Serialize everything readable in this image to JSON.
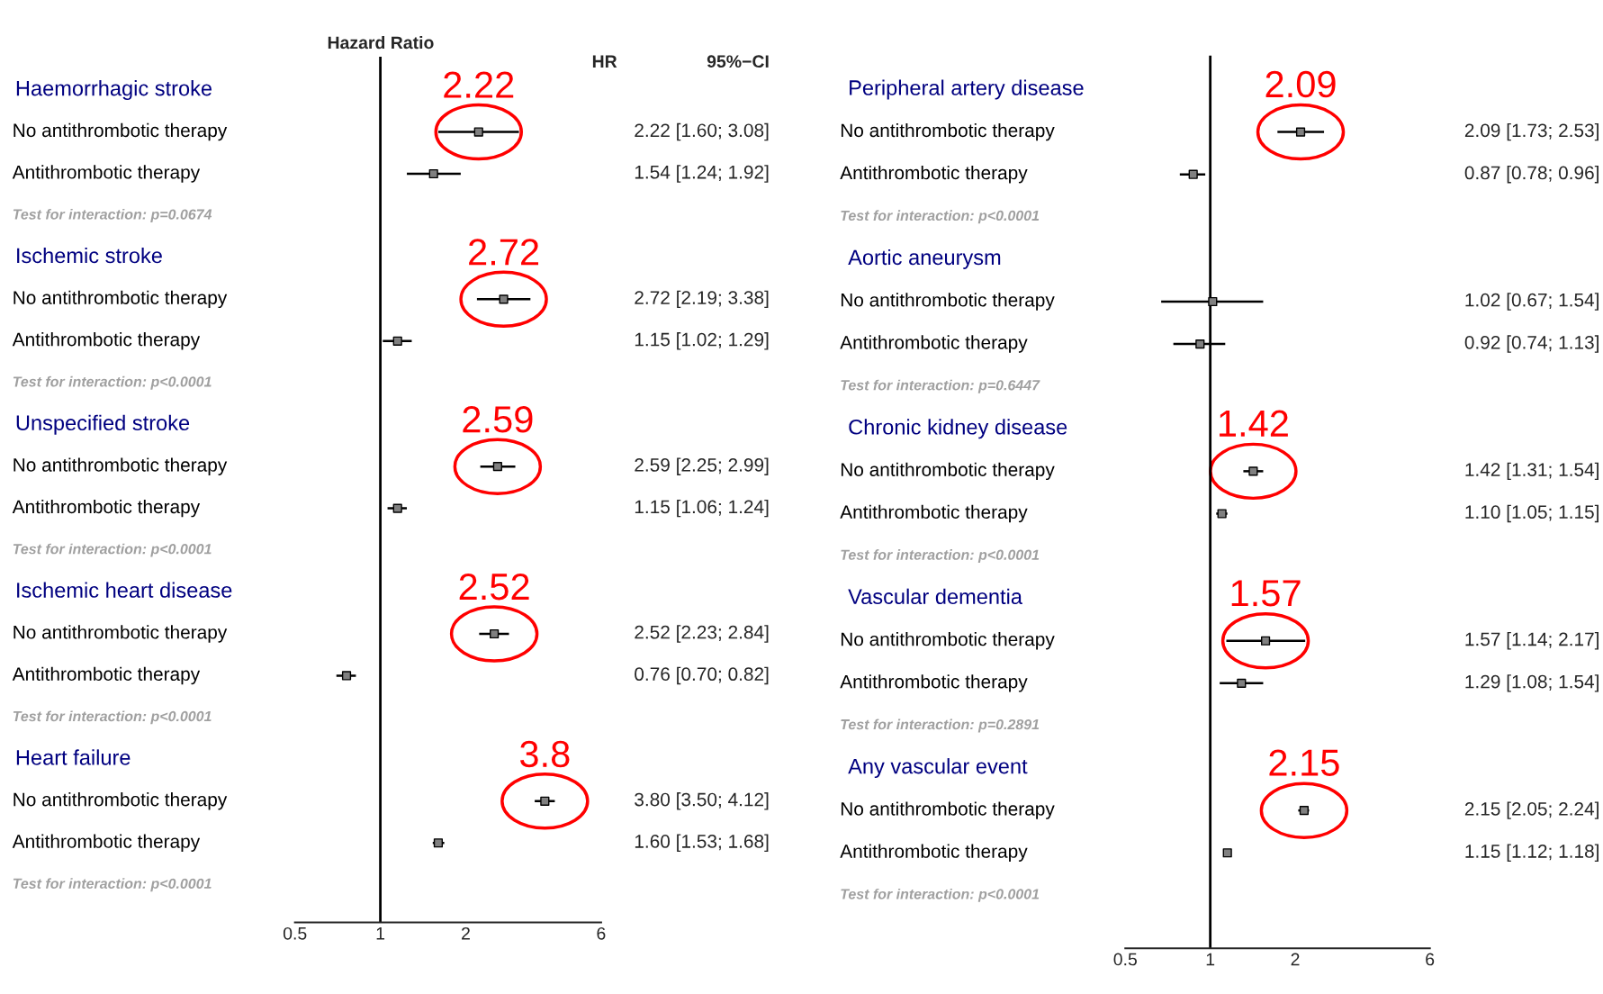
{
  "chart_data": [
    {
      "type": "scatter",
      "orientation": "horizontal",
      "title": "Hazard Ratio",
      "log": "x",
      "xlim": [
        0.5,
        6
      ],
      "xticks": [
        0.5,
        1,
        2,
        6
      ],
      "tick_labels": "x",
      "marker": "square",
      "categories": [
        "Haemorrhagic stroke",
        "No antithrombotic therapy",
        "Antithrombotic therapy",
        "Test for interaction: p=0.0674",
        "Ischemic stroke",
        "No antithrombotic therapy",
        "Antithrombotic therapy",
        "Test for interaction: p<0.0001",
        "Unspecified stroke",
        "No antithrombotic therapy",
        "Antithrombotic therapy",
        "Test for interaction: p<0.0001",
        "Ischemic heart disease",
        "No antithrombotic therapy",
        "Antithrombotic therapy",
        "Test for interaction: p<0.0001",
        "Heart failure",
        "No antithrombotic therapy",
        "Antithrombotic therapy",
        "Test for interaction: p<0.0001"
      ],
      "series": [
        {
          "color": "#000000",
          "values": [
            null,
            2.22,
            1.54,
            null,
            null,
            2.72,
            1.15,
            null,
            null,
            2.59,
            1.15,
            null,
            null,
            2.52,
            0.76,
            null,
            null,
            3.8,
            1.6,
            null
          ],
          "errors": [
            null,
            [
              1.6,
              3.08
            ],
            [
              1.24,
              1.92
            ],
            null,
            null,
            [
              2.19,
              3.38
            ],
            [
              1.02,
              1.29
            ],
            null,
            null,
            [
              2.25,
              2.99
            ],
            [
              1.06,
              1.24
            ],
            null,
            null,
            [
              2.23,
              2.84
            ],
            [
              0.7,
              0.82
            ],
            null,
            null,
            [
              3.5,
              4.12
            ],
            [
              1.53,
              1.68
            ],
            null
          ],
          "value_labels": [
            null,
            "2.22 [1.60; 3.08]",
            "1.54 [1.24; 1.92]",
            null,
            null,
            "2.72 [2.19; 3.38]",
            "1.15 [1.02; 1.29]",
            null,
            null,
            "2.59 [2.25; 2.99]",
            "1.15 [1.06; 1.24]",
            null,
            null,
            "2.52 [2.23; 2.84]",
            "0.76 [0.70; 0.82]",
            null,
            null,
            "3.80 [3.50; 4.12]",
            "1.60 [1.53; 1.68]",
            null
          ]
        }
      ],
      "ref_lines": [
        {
          "axis": "x",
          "value": 1,
          "color": "#000000"
        }
      ],
      "annotations": [
        "HR",
        "95%−CI",
        "2.22",
        "2.72",
        "2.59",
        "2.52",
        "3.8"
      ]
    },
    {
      "type": "scatter",
      "orientation": "horizontal",
      "log": "x",
      "xlim": [
        0.5,
        6
      ],
      "xticks": [
        0.5,
        1,
        2,
        6
      ],
      "tick_labels": "x",
      "marker": "square",
      "categories": [
        "Peripheral artery disease",
        "No antithrombotic therapy",
        "Antithrombotic therapy",
        "Test for interaction: p<0.0001",
        "Aortic aneurysm",
        "No antithrombotic therapy",
        "Antithrombotic therapy",
        "Test for interaction: p=0.6447",
        "Chronic kidney disease",
        "No antithrombotic therapy",
        "Antithrombotic therapy",
        "Test for interaction: p<0.0001",
        "Vascular dementia",
        "No antithrombotic therapy",
        "Antithrombotic therapy",
        "Test for interaction: p=0.2891",
        "Any vascular event",
        "No antithrombotic therapy",
        "Antithrombotic therapy",
        "Test for interaction: p<0.0001"
      ],
      "series": [
        {
          "color": "#000000",
          "values": [
            null,
            2.09,
            0.87,
            null,
            null,
            1.02,
            0.92,
            null,
            null,
            1.42,
            1.1,
            null,
            null,
            1.57,
            1.29,
            null,
            null,
            2.15,
            1.15,
            null
          ],
          "errors": [
            null,
            [
              1.73,
              2.53
            ],
            [
              0.78,
              0.96
            ],
            null,
            null,
            [
              0.67,
              1.54
            ],
            [
              0.74,
              1.13
            ],
            null,
            null,
            [
              1.31,
              1.54
            ],
            [
              1.05,
              1.15
            ],
            null,
            null,
            [
              1.14,
              2.17
            ],
            [
              1.08,
              1.54
            ],
            null,
            null,
            [
              2.05,
              2.24
            ],
            [
              1.12,
              1.18
            ],
            null
          ],
          "value_labels": [
            null,
            "2.09 [1.73; 2.53]",
            "0.87 [0.78; 0.96]",
            null,
            null,
            "1.02 [0.67; 1.54]",
            "0.92 [0.74; 1.13]",
            null,
            null,
            "1.42 [1.31; 1.54]",
            "1.10 [1.05; 1.15]",
            null,
            null,
            "1.57 [1.14; 2.17]",
            "1.29 [1.08; 1.54]",
            null,
            null,
            "2.15 [2.05; 2.24]",
            "1.15 [1.12; 1.18]",
            null
          ]
        }
      ],
      "ref_lines": [
        {
          "axis": "x",
          "value": 1,
          "color": "#000000"
        }
      ],
      "annotations": [
        "2.09",
        "1.42",
        "1.57",
        "2.15"
      ]
    }
  ]
}
